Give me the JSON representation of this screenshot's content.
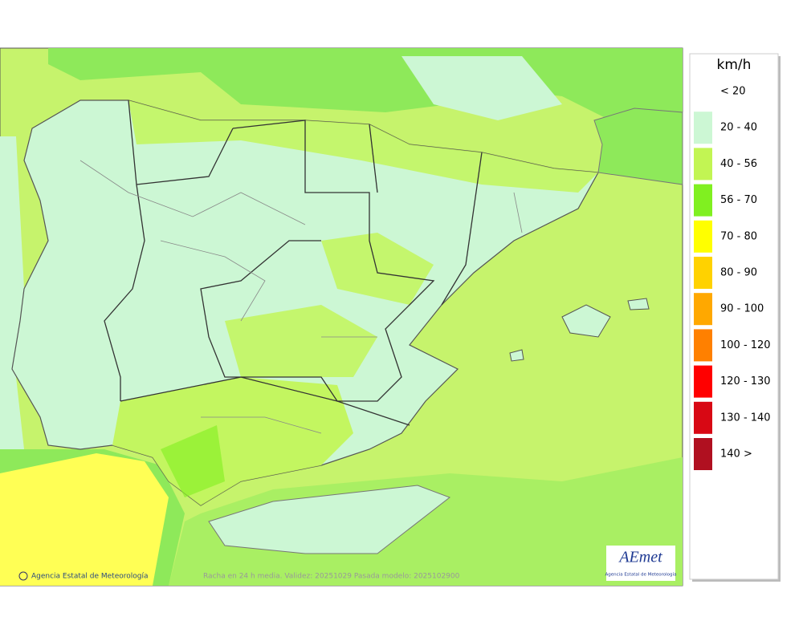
{
  "legend": {
    "title": "km/h",
    "items": [
      {
        "label": "< 20",
        "color": null
      },
      {
        "label": "20 - 40",
        "color": "#ccf7d4"
      },
      {
        "label": "40 - 56",
        "color": "#c2f553"
      },
      {
        "label": "56 - 70",
        "color": "#80f020"
      },
      {
        "label": "70 - 80",
        "color": "#ffff00"
      },
      {
        "label": "80 - 90",
        "color": "#ffd200"
      },
      {
        "label": "90 - 100",
        "color": "#ffa800"
      },
      {
        "label": "100 - 120",
        "color": "#ff8000"
      },
      {
        "label": "120 - 130",
        "color": "#ff0000"
      },
      {
        "label": "130 - 140",
        "color": "#d80814"
      },
      {
        "label": "140 >",
        "color": "#b01020"
      }
    ]
  },
  "footer": {
    "credit": "Agencia Estatal de Meteorología",
    "caption": "Racha en 24 h media. Validez: 20251029 Pasada modelo: 2025102900"
  },
  "logo": {
    "name": "AEmet",
    "subtitle": "Agencia Estatal de Meteorología"
  }
}
